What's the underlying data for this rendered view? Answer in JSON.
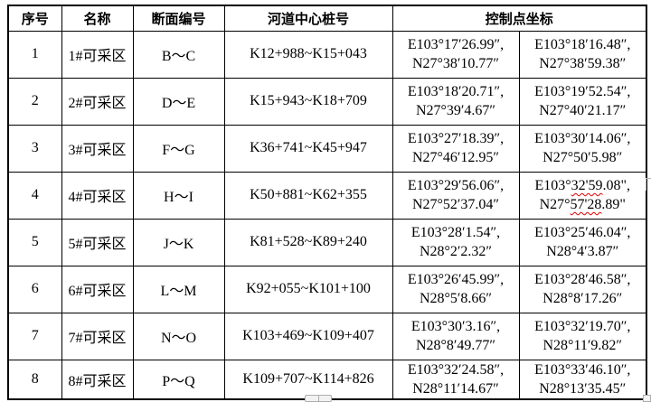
{
  "table": {
    "headers": {
      "no": "序号",
      "name": "名称",
      "section": "断面编号",
      "stake": "河道中心桩号",
      "coords": "控制点坐标"
    },
    "rows": [
      {
        "no": "1",
        "name": "1#可采区",
        "section": "B～C",
        "stake": "K12+988~K15+043",
        "pt1": [
          "E103°17′26.99″,",
          "N27°38′10.77″"
        ],
        "pt2": [
          "E103°18′16.48″,",
          "N27°38′59.38″"
        ]
      },
      {
        "no": "2",
        "name": "2#可采区",
        "section": "D～E",
        "stake": "K15+943~K18+709",
        "pt1": [
          "E103°18′20.71″,",
          "N27°39′4.67″"
        ],
        "pt2": [
          "E103°19′52.54″,",
          "N27°40′21.17″"
        ]
      },
      {
        "no": "3",
        "name": "3#可采区",
        "section": "F～G",
        "stake": "K36+741~K45+947",
        "pt1": [
          "E103°27′18.39″,",
          "N27°46′12.95″"
        ],
        "pt2": [
          "E103°30′14.06″,",
          "N27°50′5.98″"
        ]
      },
      {
        "no": "4",
        "name": "4#可采区",
        "section": "H～I",
        "stake": "K50+881~K62+355",
        "pt1": [
          "E103°29′56.06″,",
          "N27°52′37.04″"
        ],
        "pt2": [
          "E103°{{32'59}}.08\",",
          "N27°{{57'28}}.89\""
        ]
      },
      {
        "no": "5",
        "name": "5#可采区",
        "section": "J～K",
        "stake": "K81+528~K89+240",
        "pt1": [
          "E103°28′1.54″,",
          "N28°2′2.32″"
        ],
        "pt2": [
          "E103°25′46.04″,",
          "N28°4′3.87″"
        ]
      },
      {
        "no": "6",
        "name": "6#可采区",
        "section": "L～M",
        "stake": "K92+055~K101+100",
        "pt1": [
          "E103°26′45.99″,",
          "N28°5′8.66″"
        ],
        "pt2": [
          "E103°28′46.58″,",
          "N28°8′17.26″"
        ]
      },
      {
        "no": "7",
        "name": "7#可采区",
        "section": "N～O",
        "stake": "K103+469~K109+407",
        "pt1": [
          "E103°30′3.16″,",
          "N28°8′49.77″"
        ],
        "pt2": [
          "E103°32′19.70″,",
          "N28°11′9.82″"
        ]
      },
      {
        "no": "8",
        "name": "8#可采区",
        "section": "P～Q",
        "stake": "K109+707~K114+826",
        "pt1": [
          "E103°32′24.58″,",
          "N28°11′14.67″"
        ],
        "pt2": [
          "E103°33′46.10″,",
          "N28°13′35.45″"
        ]
      }
    ]
  },
  "colors": {
    "border": "#000000",
    "text": "#000000",
    "spellcheck_underline": "#e00000",
    "fragment_gray": "#adadad"
  }
}
